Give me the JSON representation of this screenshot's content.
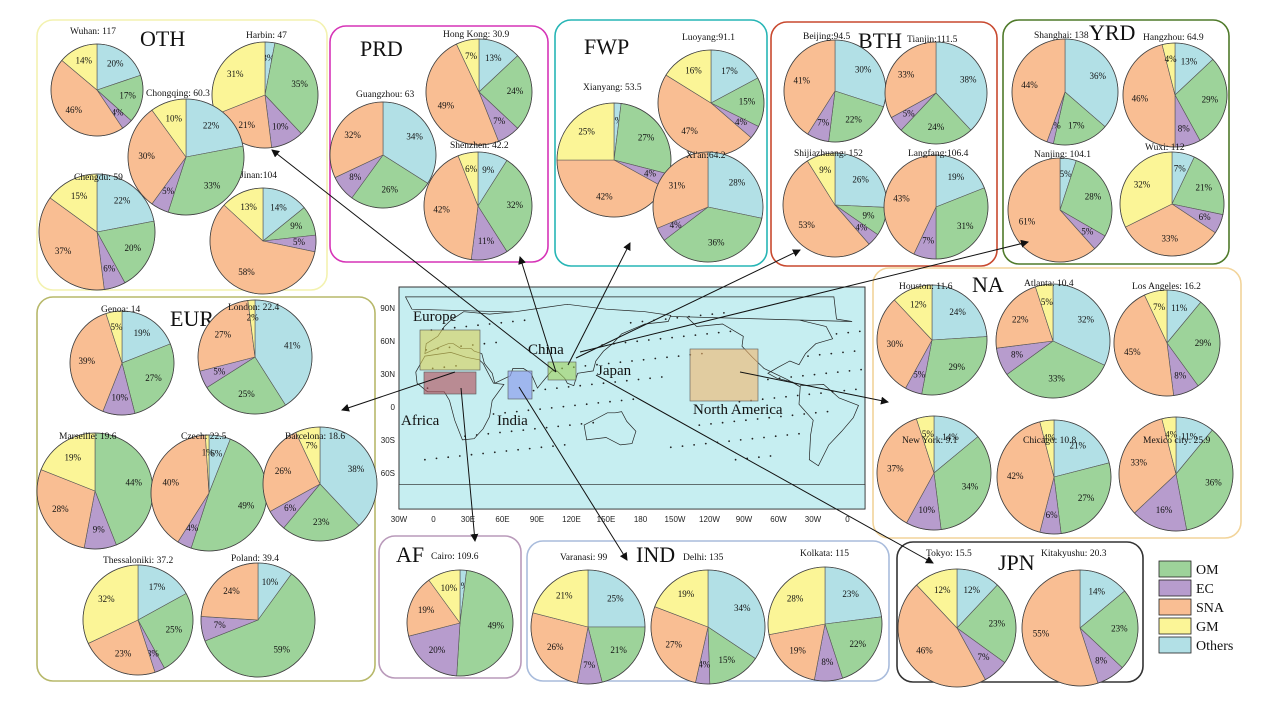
{
  "chart_data": {
    "type": "pie",
    "title": "",
    "colors": {
      "OM": "#9dd39a",
      "EC": "#b79ccd",
      "SNA": "#f9be93",
      "GM": "#fbf597",
      "Others": "#b2e0e6"
    },
    "legend": {
      "placement": "bottom-right",
      "entries": [
        "OM",
        "EC",
        "SNA",
        "GM",
        "Others"
      ]
    },
    "world_map": {
      "lat_ticks": [
        "90N",
        "60N",
        "30N",
        "0",
        "30S",
        "60S"
      ],
      "lon_ticks": [
        "30W",
        "0",
        "30E",
        "60E",
        "90E",
        "120E",
        "150E",
        "180",
        "150W",
        "120W",
        "90W",
        "60W",
        "30W",
        "0"
      ],
      "region_labels": [
        "Europe",
        "China",
        "Japan",
        "Africa",
        "India",
        "North America"
      ]
    },
    "regions": [
      {
        "name": "OTH",
        "border": "#f3f2b0",
        "cities": [
          {
            "label": "Wuhan: 117",
            "shares": {
              "OM": 17,
              "EC": 4,
              "SNA": 46,
              "GM": 14,
              "Others": 20
            },
            "pct_text": {
              "OM": "17%",
              "EC": "4%",
              "SNA": "46%",
              "GM": "14%",
              "Others": "20%"
            }
          },
          {
            "label": "Harbin: 47",
            "shares": {
              "OM": 35,
              "EC": 10,
              "SNA": 21,
              "GM": 31,
              "Others": 3
            },
            "pct_text": {
              "OM": "35%",
              "EC": "10%",
              "SNA": "21%",
              "GM": "31%",
              "Others": "3%"
            }
          },
          {
            "label": "Chongqing: 60.3",
            "shares": {
              "OM": 33,
              "EC": 5,
              "SNA": 30,
              "GM": 10,
              "Others": 22
            },
            "pct_text": {
              "OM": "33%",
              "EC": "5%",
              "SNA": "30%",
              "GM": "10%",
              "Others": "22%"
            }
          },
          {
            "label": "Chengdu: 59",
            "shares": {
              "OM": 20,
              "EC": 6,
              "SNA": 37,
              "GM": 15,
              "Others": 22
            },
            "pct_text": {
              "OM": "20%",
              "EC": "6%",
              "SNA": "37%",
              "GM": "15%",
              "Others": "22%"
            }
          },
          {
            "label": "Jinan:104",
            "shares": {
              "OM": 9,
              "EC": 5,
              "SNA": 58,
              "GM": 13,
              "Others": 14
            },
            "pct_text": {
              "OM": "9%",
              "EC": "5%",
              "SNA": "58%",
              "GM": "13%",
              "Others": "14%"
            }
          }
        ]
      },
      {
        "name": "PRD",
        "border": "#d634b7",
        "cities": [
          {
            "label": "Hong Kong: 30.9",
            "shares": {
              "OM": 24,
              "EC": 7,
              "SNA": 49,
              "GM": 7,
              "Others": 13
            },
            "pct_text": {
              "OM": "24%",
              "EC": "7%",
              "SNA": "49%",
              "GM": "7%",
              "Others": "13%"
            }
          },
          {
            "label": "Guangzhou: 63",
            "shares": {
              "OM": 26,
              "EC": 8,
              "SNA": 32,
              "GM": 0,
              "Others": 34
            },
            "pct_text": {
              "OM": "26%",
              "EC": "8%",
              "SNA": "32%",
              "GM": "",
              "Others": "34%"
            }
          },
          {
            "label": "Shenzhen: 42.2",
            "shares": {
              "OM": 32,
              "EC": 11,
              "SNA": 42,
              "GM": 6,
              "Others": 9
            },
            "pct_text": {
              "OM": "32%",
              "EC": "11%",
              "SNA": "42%",
              "GM": "6%",
              "Others": "9%"
            }
          }
        ]
      },
      {
        "name": "FWP",
        "border": "#26b5b5",
        "cities": [
          {
            "label": "Luoyang:91.1",
            "shares": {
              "OM": 15,
              "EC": 4,
              "SNA": 47,
              "GM": 16,
              "Others": 17
            },
            "pct_text": {
              "OM": "15%",
              "EC": "4%",
              "SNA": "47%",
              "GM": "16%",
              "Others": "17%"
            }
          },
          {
            "label": "Xianyang: 53.5",
            "shares": {
              "OM": 27,
              "EC": 4,
              "SNA": 42,
              "GM": 25,
              "Others": 2
            },
            "pct_text": {
              "OM": "27%",
              "EC": "4%",
              "SNA": "42%",
              "GM": "25%",
              "Others": "2%"
            }
          },
          {
            "label": "Xi'an:64.2",
            "shares": {
              "OM": 36,
              "EC": 4,
              "SNA": 31,
              "GM": 0,
              "Others": 28
            },
            "pct_text": {
              "OM": "36%",
              "EC": "4%",
              "SNA": "31%",
              "GM": "",
              "Others": "28%"
            }
          }
        ]
      },
      {
        "name": "BTH",
        "border": "#c8492f",
        "cities": [
          {
            "label": "Beijing:94.5",
            "shares": {
              "OM": 22,
              "EC": 7,
              "SNA": 41,
              "GM": 0,
              "Others": 30
            },
            "pct_text": {
              "OM": "22%",
              "EC": "7%",
              "SNA": "41%",
              "GM": "",
              "Others": "30%"
            }
          },
          {
            "label": "Tianjin:111.5",
            "shares": {
              "OM": 24,
              "EC": 5,
              "SNA": 33,
              "GM": 0,
              "Others": 38
            },
            "pct_text": {
              "OM": "24%",
              "EC": "5%",
              "SNA": "33%",
              "GM": "",
              "Others": "38%"
            }
          },
          {
            "label": "Shijiazhuang: 152",
            "shares": {
              "OM": 9,
              "EC": 4,
              "SNA": 53,
              "GM": 9,
              "Others": 26
            },
            "pct_text": {
              "OM": "9%",
              "EC": "4%",
              "SNA": "53%",
              "GM": "9%",
              "Others": "26%"
            }
          },
          {
            "label": "Langfang:106.4",
            "shares": {
              "OM": 31,
              "EC": 7,
              "SNA": 43,
              "GM": 0,
              "Others": 19
            },
            "pct_text": {
              "OM": "31%",
              "EC": "7%",
              "SNA": "43%",
              "GM": "",
              "Others": "19%"
            }
          }
        ]
      },
      {
        "name": "YRD",
        "border": "#4f7a2a",
        "cities": [
          {
            "label": "Shanghai: 138",
            "shares": {
              "OM": 17,
              "EC": 2,
              "SNA": 44,
              "GM": 0,
              "Others": 36
            },
            "pct_text": {
              "OM": "17%",
              "EC": "2%",
              "SNA": "44%",
              "GM": "",
              "Others": "36%"
            }
          },
          {
            "label": "Hangzhou: 64.9",
            "shares": {
              "OM": 29,
              "EC": 8,
              "SNA": 46,
              "GM": 4,
              "Others": 13
            },
            "pct_text": {
              "OM": "29%",
              "EC": "8%",
              "SNA": "46%",
              "GM": "4%",
              "Others": "13%"
            }
          },
          {
            "label": "Nanjing: 104.1",
            "shares": {
              "OM": 28,
              "EC": 5,
              "SNA": 61,
              "GM": 0,
              "Others": 5
            },
            "pct_text": {
              "OM": "28%",
              "EC": "5%",
              "SNA": "61%",
              "GM": "",
              "Others": "5%"
            }
          },
          {
            "label": "Wuxi: 112",
            "shares": {
              "OM": 21,
              "EC": 6,
              "SNA": 33,
              "GM": 32,
              "Others": 7
            },
            "pct_text": {
              "OM": "21%",
              "EC": "6%",
              "SNA": "33%",
              "GM": "32%",
              "Others": "7%"
            }
          }
        ]
      },
      {
        "name": "NA",
        "border": "#f2d49a",
        "cities": [
          {
            "label": "Houston: 11.6",
            "shares": {
              "OM": 29,
              "EC": 5,
              "SNA": 30,
              "GM": 12,
              "Others": 24
            },
            "pct_text": {
              "OM": "29%",
              "EC": "5%",
              "SNA": "30%",
              "GM": "12%",
              "Others": "24%"
            }
          },
          {
            "label": "Atlanta: 10.4",
            "shares": {
              "OM": 33,
              "EC": 8,
              "SNA": 22,
              "GM": 5,
              "Others": 32
            },
            "pct_text": {
              "OM": "33%",
              "EC": "8%",
              "SNA": "22%",
              "GM": "5%",
              "Others": "32%"
            }
          },
          {
            "label": "Los Angeles: 16.2",
            "shares": {
              "OM": 29,
              "EC": 8,
              "SNA": 45,
              "GM": 7,
              "Others": 11
            },
            "pct_text": {
              "OM": "29%",
              "EC": "8%",
              "SNA": "45%",
              "GM": "7%",
              "Others": "11%"
            }
          },
          {
            "label": "New York: 9.1",
            "shares": {
              "OM": 34,
              "EC": 10,
              "SNA": 37,
              "GM": 5,
              "Others": 14
            },
            "pct_text": {
              "OM": "34%",
              "EC": "10%",
              "SNA": "37%",
              "GM": "5%",
              "Others": "14%"
            }
          },
          {
            "label": "Chicago: 10.8",
            "shares": {
              "OM": 27,
              "EC": 6,
              "SNA": 42,
              "GM": 4,
              "Others": 21
            },
            "pct_text": {
              "OM": "27%",
              "EC": "6%",
              "SNA": "42%",
              "GM": "4%",
              "Others": "21%"
            }
          },
          {
            "label": "Mexico city: 25.9",
            "shares": {
              "OM": 36,
              "EC": 16,
              "SNA": 33,
              "GM": 4,
              "Others": 11
            },
            "pct_text": {
              "OM": "36%",
              "EC": "16%",
              "SNA": "33%",
              "GM": "4%",
              "Others": "11%"
            }
          }
        ]
      },
      {
        "name": "EUR",
        "border": "#b7b86a",
        "cities": [
          {
            "label": "Genoa: 14",
            "shares": {
              "OM": 27,
              "EC": 10,
              "SNA": 39,
              "GM": 5,
              "Others": 19
            },
            "pct_text": {
              "OM": "27%",
              "EC": "10%",
              "SNA": "39%",
              "GM": "5%",
              "Others": "19%"
            }
          },
          {
            "label": "London: 22.4",
            "shares": {
              "OM": 25,
              "EC": 5,
              "SNA": 27,
              "GM": 2,
              "Others": 41
            },
            "pct_text": {
              "OM": "25%",
              "EC": "5%",
              "SNA": "27%",
              "GM": "2%",
              "Others": "41%"
            }
          },
          {
            "label": "Marseille: 19.6",
            "shares": {
              "OM": 44,
              "EC": 9,
              "SNA": 28,
              "GM": 19,
              "Others": 0
            },
            "pct_text": {
              "OM": "44%",
              "EC": "9%",
              "SNA": "28%",
              "GM": "19%",
              "Others": ""
            }
          },
          {
            "label": "Czech: 22.5",
            "shares": {
              "OM": 49,
              "EC": 4,
              "SNA": 40,
              "GM": 1,
              "Others": 6
            },
            "pct_text": {
              "OM": "49%",
              "EC": "4%",
              "SNA": "40%",
              "GM": "1%",
              "Others": "6%"
            }
          },
          {
            "label": "Barcelona: 18.6",
            "shares": {
              "OM": 23,
              "EC": 6,
              "SNA": 26,
              "GM": 7,
              "Others": 38
            },
            "pct_text": {
              "OM": "23%",
              "EC": "6%",
              "SNA": "26%",
              "GM": "7%",
              "Others": "38%"
            }
          },
          {
            "label": "Thessaloniki: 37.2",
            "shares": {
              "OM": 25,
              "EC": 3,
              "SNA": 23,
              "GM": 32,
              "Others": 17
            },
            "pct_text": {
              "OM": "25%",
              "EC": "3%",
              "SNA": "23%",
              "GM": "32%",
              "Others": "17%"
            }
          },
          {
            "label": "Poland: 39.4",
            "shares": {
              "OM": 59,
              "EC": 7,
              "SNA": 24,
              "GM": 0,
              "Others": 10
            },
            "pct_text": {
              "OM": "59%",
              "EC": "7%",
              "SNA": "24%",
              "GM": "",
              "Others": "10%"
            }
          }
        ]
      },
      {
        "name": "AF",
        "border": "#b99aba",
        "cities": [
          {
            "label": "Cairo: 109.6",
            "shares": {
              "OM": 49,
              "EC": 20,
              "SNA": 19,
              "GM": 10,
              "Others": 2
            },
            "pct_text": {
              "OM": "49%",
              "EC": "20%",
              "SNA": "19%",
              "GM": "10%",
              "Others": "2%"
            }
          }
        ]
      },
      {
        "name": "IND",
        "border": "#a9bcdc",
        "cities": [
          {
            "label": "Varanasi: 99",
            "shares": {
              "OM": 21,
              "EC": 7,
              "SNA": 26,
              "GM": 21,
              "Others": 25
            },
            "pct_text": {
              "OM": "21%",
              "EC": "7%",
              "SNA": "26%",
              "GM": "21%",
              "Others": "25%"
            }
          },
          {
            "label": "Delhi: 135",
            "shares": {
              "OM": 15,
              "EC": 4,
              "SNA": 27,
              "GM": 19,
              "Others": 34
            },
            "pct_text": {
              "OM": "15%",
              "EC": "4%",
              "SNA": "27%",
              "GM": "19%",
              "Others": "34%"
            }
          },
          {
            "label": "Kolkata: 115",
            "shares": {
              "OM": 22,
              "EC": 8,
              "SNA": 19,
              "GM": 28,
              "Others": 23
            },
            "pct_text": {
              "OM": "22%",
              "EC": "8%",
              "SNA": "19%",
              "GM": "28%",
              "Others": "23%"
            }
          }
        ]
      },
      {
        "name": "JPN",
        "border": "#333333",
        "cities": [
          {
            "label": "Tokyo: 15.5",
            "shares": {
              "OM": 23,
              "EC": 7,
              "SNA": 46,
              "GM": 12,
              "Others": 12
            },
            "pct_text": {
              "OM": "23%",
              "EC": "7%",
              "SNA": "46%",
              "GM": "12%",
              "Others": "12%"
            }
          },
          {
            "label": "Kitakyushu: 20.3",
            "shares": {
              "OM": 23,
              "EC": 8,
              "SNA": 55,
              "GM": 0,
              "Others": 14
            },
            "pct_text": {
              "OM": "23%",
              "EC": "8%",
              "SNA": "55%",
              "GM": "",
              "Others": "14%"
            }
          }
        ]
      }
    ]
  }
}
